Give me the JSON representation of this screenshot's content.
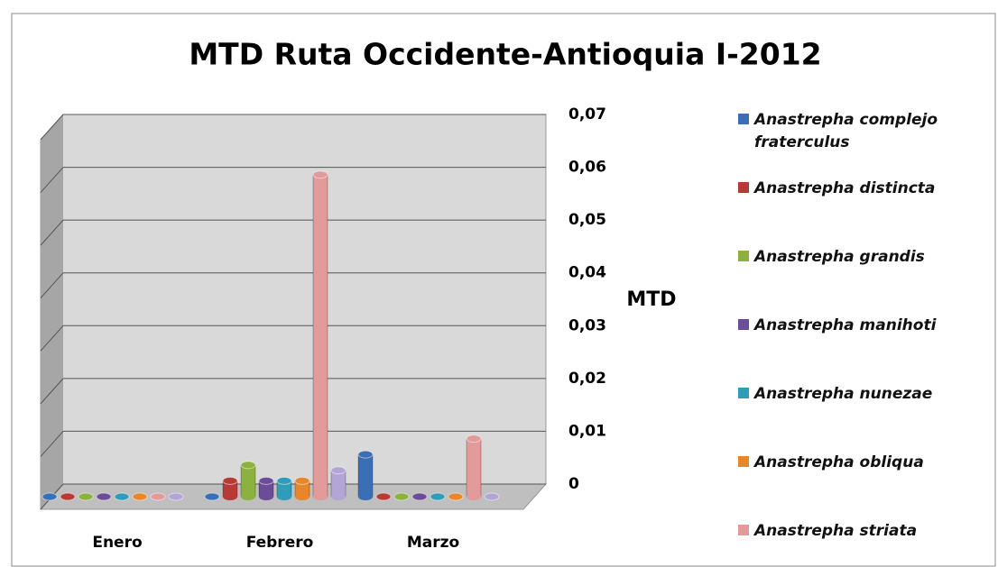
{
  "chart_data": {
    "type": "bar",
    "title": "MTD Ruta Occidente-Antioquia I-2012",
    "y_axis_label": "MTD",
    "categories": [
      "Enero",
      "Febrero",
      "Marzo"
    ],
    "series": [
      {
        "name": "Anastrepha complejo fraterculus",
        "color": "#3a6fb5",
        "values": [
          0,
          0,
          0.008
        ]
      },
      {
        "name": "Anastrepha distincta",
        "color": "#b83a36",
        "values": [
          0,
          0.003,
          0
        ]
      },
      {
        "name": "Anastrepha grandis",
        "color": "#8db13f",
        "values": [
          0,
          0.006,
          0
        ]
      },
      {
        "name": "Anastrepha manihoti",
        "color": "#6b4c96",
        "values": [
          0,
          0.003,
          0
        ]
      },
      {
        "name": "Anastrepha nunezae",
        "color": "#2f9cb8",
        "values": [
          0,
          0.003,
          0
        ]
      },
      {
        "name": "Anastrepha obliqua",
        "color": "#e8862a",
        "values": [
          0,
          0.003,
          0
        ]
      },
      {
        "name": "Anastrepha striata",
        "color": "#e39a9a",
        "values": [
          0,
          0.061,
          0.011
        ]
      },
      {
        "name": null,
        "color": "#b3a6d6",
        "values": [
          0,
          0.005,
          0
        ]
      }
    ],
    "ylim": [
      0,
      0.07
    ],
    "yticks": [
      0,
      {
        "value": 0.01,
        "label": "0,01"
      },
      {
        "value": 0.02,
        "label": "0,02"
      },
      {
        "value": 0.03,
        "label": "0,03"
      },
      {
        "value": 0.04,
        "label": "0,04"
      },
      {
        "value": 0.05,
        "label": "0,05"
      },
      {
        "value": 0.06,
        "label": "0,06"
      },
      {
        "value": 0.07,
        "label": "0,07"
      }
    ],
    "grid": true
  }
}
